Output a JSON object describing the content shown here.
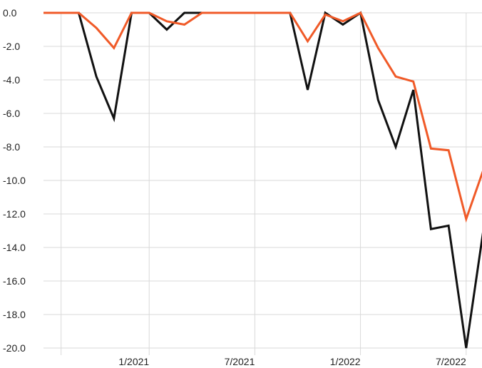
{
  "chart_data": {
    "type": "line",
    "title": "",
    "xlabel": "",
    "ylabel": "",
    "x": [
      "2020-07",
      "2020-08",
      "2020-09",
      "2020-10",
      "2020-11",
      "2020-12",
      "2021-01",
      "2021-02",
      "2021-03",
      "2021-04",
      "2021-05",
      "2021-06",
      "2021-07",
      "2021-08",
      "2021-09",
      "2021-10",
      "2021-11",
      "2021-12",
      "2022-01",
      "2022-02",
      "2022-03",
      "2022-04",
      "2022-05",
      "2022-06",
      "2022-07",
      "2022-08"
    ],
    "x_ticks": [
      {
        "label": "1/2021",
        "x": "2021-01"
      },
      {
        "label": "7/2021",
        "x": "2021-07"
      },
      {
        "label": "1/2022",
        "x": "2022-01"
      },
      {
        "label": "7/2022",
        "x": "2022-07"
      }
    ],
    "y_ticks": [
      "0.0",
      "-2.0",
      "-4.0",
      "-6.0",
      "-8.0",
      "-10.0",
      "-12.0",
      "-14.0",
      "-16.0",
      "-18.0",
      "-20.0"
    ],
    "ylim": [
      -20,
      0
    ],
    "grid": true,
    "series": [
      {
        "color": "#111111",
        "values": [
          0,
          0,
          0,
          -3.8,
          -6.3,
          0,
          0,
          -1.0,
          0,
          0,
          0,
          0,
          0,
          0,
          0,
          -4.6,
          0,
          -0.7,
          0,
          -5.2,
          -8.0,
          -4.6,
          -12.9,
          -12.7,
          -20.0,
          -12.8
        ]
      },
      {
        "color": "#f05a28",
        "values": [
          0,
          0,
          0,
          -0.9,
          -2.1,
          0,
          0,
          -0.5,
          -0.7,
          0,
          0,
          0,
          0,
          0,
          0,
          -1.7,
          -0.1,
          -0.5,
          0,
          -2.1,
          -3.8,
          -4.1,
          -8.1,
          -8.2,
          -12.3,
          -9.3
        ]
      }
    ]
  }
}
